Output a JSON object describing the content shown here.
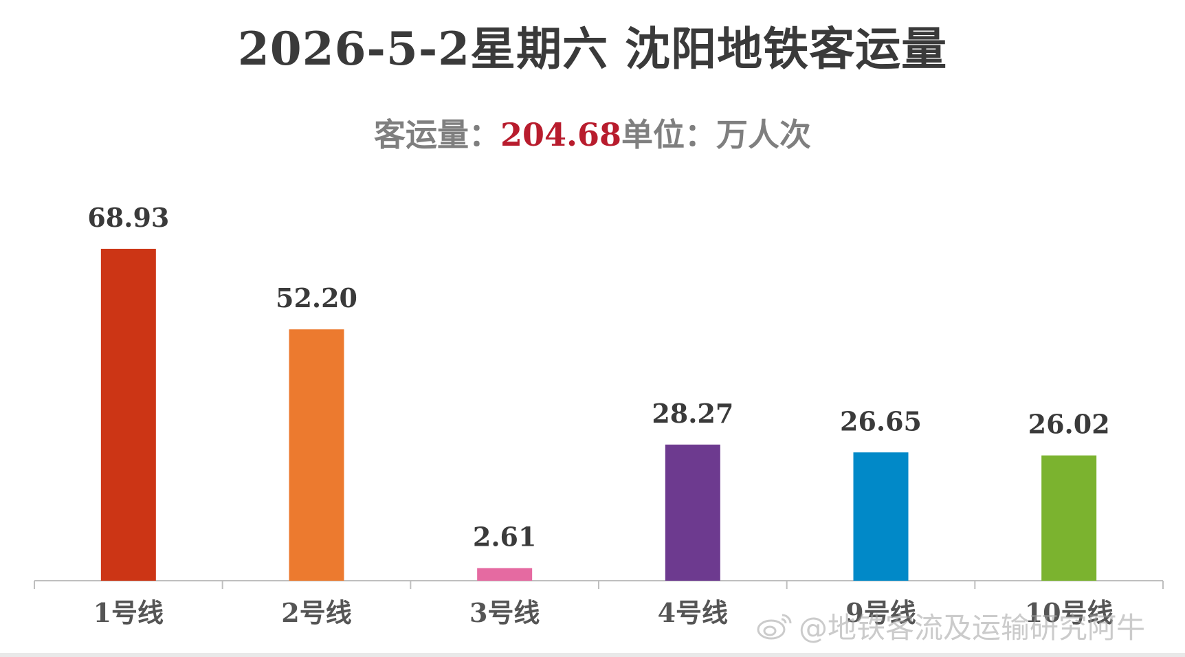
{
  "title": "2026-5-2星期六 沈阳地铁客运量",
  "subtitle": {
    "prefix": "客运量：",
    "total": "204.68",
    "suffix": "单位：万人次"
  },
  "chart_data": {
    "type": "bar",
    "categories": [
      "1号线",
      "2号线",
      "3号线",
      "4号线",
      "9号线",
      "10号线"
    ],
    "values": [
      68.93,
      52.2,
      2.61,
      28.27,
      26.65,
      26.02
    ],
    "value_labels": [
      "68.93",
      "52.20",
      "2.61",
      "28.27",
      "26.65",
      "26.02"
    ],
    "colors": [
      "#cc3515",
      "#ec7a2f",
      "#e56aa1",
      "#6d3a8f",
      "#0189c8",
      "#7bb32f"
    ],
    "ylim": [
      0,
      68.93
    ],
    "grid": false,
    "legend": "none"
  },
  "watermark": {
    "text": "@地铁客流及运输研究阿牛",
    "icon": "weibo-icon"
  }
}
